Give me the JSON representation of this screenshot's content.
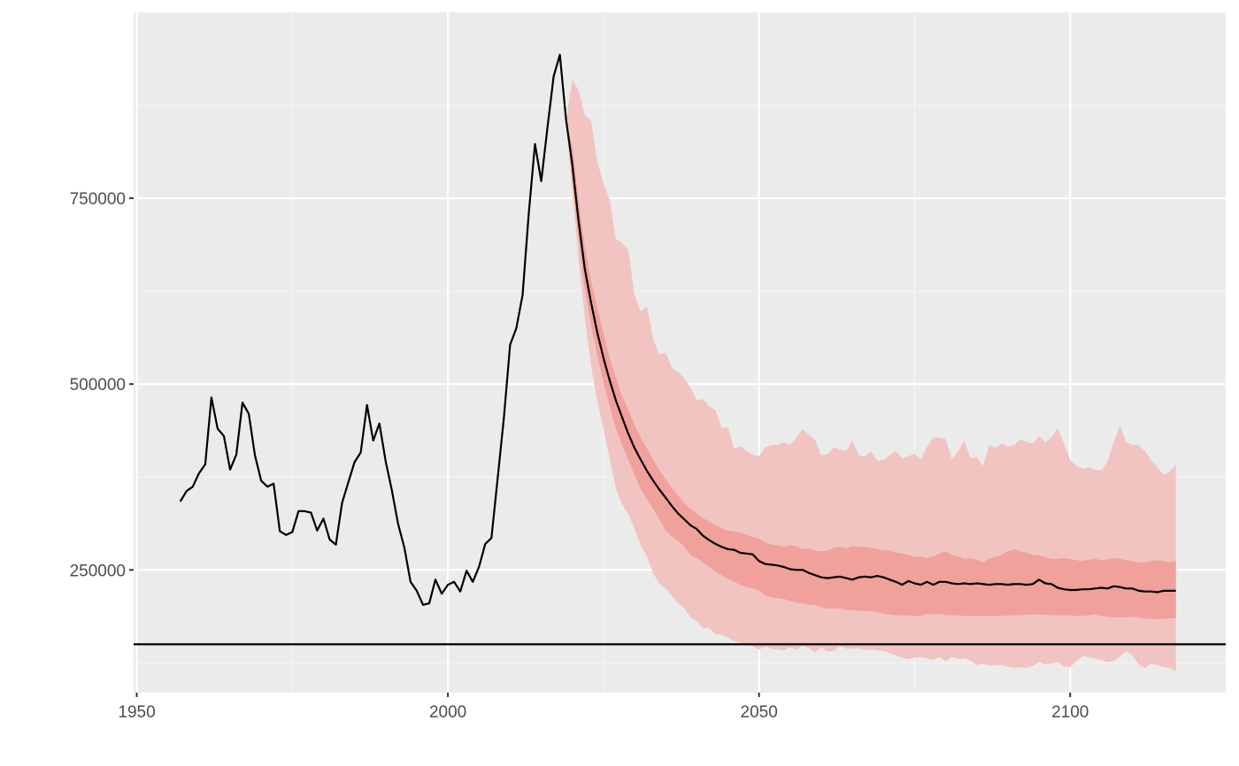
{
  "chart_data": {
    "type": "line",
    "title": "",
    "xlabel": "",
    "ylabel": "",
    "xlim": [
      1949.5,
      2125
    ],
    "ylim": [
      85000,
      1000000
    ],
    "x_ticks": [
      1950,
      2000,
      2050,
      2100
    ],
    "x_tick_labels": [
      "1950",
      "2000",
      "2050",
      "2100"
    ],
    "y_ticks": [
      250000,
      500000,
      750000
    ],
    "y_tick_labels": [
      "250000",
      "500000",
      "750000"
    ],
    "grid": true,
    "legend": "none",
    "reference_line": {
      "y": 150000
    },
    "colors": {
      "panel": "#ebebeb",
      "grid_major": "#ffffff",
      "grid_minor": "#f5f5f5",
      "line": "#000000",
      "band_outer": "#f1c4c2",
      "band_inner": "#f0a19c",
      "tick_text": "#4d4d4d"
    },
    "series": [
      {
        "kind": "historical",
        "x": [
          1957,
          1958,
          1959,
          1960,
          1961,
          1962,
          1963,
          1964,
          1965,
          1966,
          1967,
          1968,
          1969,
          1970,
          1971,
          1972,
          1973,
          1974,
          1975,
          1976,
          1977,
          1978,
          1979,
          1980,
          1981,
          1982,
          1983,
          1984,
          1985,
          1986,
          1987,
          1988,
          1989,
          1990,
          1991,
          1992,
          1993,
          1994,
          1995,
          1996,
          1997,
          1998,
          1999,
          2000,
          2001,
          2002,
          2003,
          2004,
          2005,
          2006,
          2007,
          2008,
          2009,
          2010,
          2011,
          2012,
          2013,
          2014,
          2015,
          2016,
          2017,
          2018,
          2019
        ],
        "y": [
          342000,
          356000,
          362000,
          380000,
          392000,
          482000,
          440000,
          430000,
          385000,
          405000,
          475000,
          460000,
          404000,
          370000,
          362000,
          366000,
          302000,
          297000,
          301000,
          329000,
          329000,
          327000,
          303000,
          319000,
          291000,
          284000,
          340000,
          368000,
          395000,
          408000,
          472000,
          424000,
          447000,
          396000,
          357000,
          312000,
          280000,
          234000,
          222000,
          203000,
          205000,
          237000,
          218000,
          230000,
          234000,
          221000,
          249000,
          234000,
          254000,
          285000,
          293000,
          373000,
          455000,
          553000,
          575000,
          620000,
          730000,
          823000,
          773000,
          845000,
          914000,
          943000,
          855000
        ]
      },
      {
        "kind": "projection-median",
        "x": [
          2019,
          2020,
          2021,
          2022,
          2023,
          2024,
          2025,
          2026,
          2027,
          2028,
          2029,
          2030,
          2031,
          2032,
          2033,
          2034,
          2035,
          2036,
          2037,
          2038,
          2039,
          2040,
          2041,
          2042,
          2043,
          2044,
          2045,
          2046,
          2047,
          2048,
          2049,
          2050,
          2051,
          2052,
          2053,
          2054,
          2055,
          2056,
          2057,
          2058,
          2059,
          2060,
          2061,
          2062,
          2063,
          2064,
          2065,
          2066,
          2067,
          2068,
          2069,
          2070,
          2071,
          2072,
          2073,
          2074,
          2075,
          2076,
          2077,
          2078,
          2079,
          2080,
          2081,
          2082,
          2083,
          2084,
          2085,
          2086,
          2087,
          2088,
          2089,
          2090,
          2091,
          2092,
          2093,
          2094,
          2095,
          2096,
          2097,
          2098,
          2099,
          2100,
          2101,
          2102,
          2103,
          2104,
          2105,
          2106,
          2107,
          2108,
          2109,
          2110,
          2111,
          2112,
          2113,
          2114,
          2115,
          2116,
          2117
        ],
        "y": [
          855000,
          795000,
          720000,
          655000,
          610000,
          570000,
          535000,
          505000,
          478000,
          455000,
          433000,
          414000,
          398000,
          383000,
          370000,
          358000,
          347000,
          336000,
          326000,
          318000,
          310000,
          305000,
          296000,
          290000,
          285000,
          281000,
          278000,
          277000,
          273000,
          272000,
          271000,
          262000,
          258000,
          257000,
          256000,
          254000,
          251000,
          250000,
          250000,
          246000,
          243000,
          240000,
          239000,
          240000,
          241000,
          239000,
          237000,
          240000,
          241000,
          240000,
          242000,
          240000,
          237000,
          234000,
          230000,
          235000,
          232000,
          230000,
          234000,
          230000,
          234000,
          234000,
          232000,
          231000,
          232000,
          231000,
          232000,
          231000,
          230000,
          231000,
          231000,
          230000,
          231000,
          231000,
          230000,
          231000,
          237000,
          232000,
          231000,
          226000,
          224000,
          223000,
          223000,
          224000,
          224000,
          225000,
          226000,
          225000,
          228000,
          227000,
          225000,
          225000,
          222000,
          221000,
          221000,
          220000,
          222000,
          222000,
          222000
        ]
      }
    ],
    "bands": [
      {
        "kind": "outer",
        "x": [
          2019,
          2020,
          2021,
          2022,
          2023,
          2024,
          2025,
          2026,
          2027,
          2028,
          2029,
          2030,
          2031,
          2032,
          2033,
          2034,
          2035,
          2036,
          2037,
          2038,
          2039,
          2040,
          2041,
          2042,
          2043,
          2044,
          2045,
          2046,
          2047,
          2048,
          2049,
          2050,
          2051,
          2052,
          2053,
          2054,
          2055,
          2056,
          2057,
          2058,
          2059,
          2060,
          2061,
          2062,
          2063,
          2064,
          2065,
          2066,
          2067,
          2068,
          2069,
          2070,
          2071,
          2072,
          2073,
          2074,
          2075,
          2076,
          2077,
          2078,
          2079,
          2080,
          2081,
          2082,
          2083,
          2084,
          2085,
          2086,
          2087,
          2088,
          2089,
          2090,
          2091,
          2092,
          2093,
          2094,
          2095,
          2096,
          2097,
          2098,
          2099,
          2100,
          2101,
          2102,
          2103,
          2104,
          2105,
          2106,
          2107,
          2108,
          2109,
          2110,
          2111,
          2112,
          2113,
          2114,
          2115,
          2116,
          2117
        ],
        "upper": [
          855000,
          910000,
          895000,
          862000,
          855000,
          800000,
          770000,
          748000,
          695000,
          690000,
          680000,
          620000,
          598000,
          605000,
          560000,
          540000,
          542000,
          522000,
          516000,
          508000,
          495000,
          478000,
          480000,
          470000,
          465000,
          441000,
          442000,
          413000,
          416000,
          410000,
          405000,
          403000,
          415000,
          418000,
          418000,
          422000,
          418000,
          428000,
          440000,
          432000,
          425000,
          404000,
          406000,
          415000,
          412000,
          410000,
          424000,
          405000,
          402000,
          410000,
          397000,
          398000,
          404000,
          410000,
          400000,
          403000,
          406000,
          399000,
          416000,
          428000,
          428000,
          426000,
          399000,
          410000,
          424000,
          400000,
          402000,
          390000,
          418000,
          414000,
          420000,
          416000,
          418000,
          426000,
          422000,
          420000,
          430000,
          422000,
          428000,
          440000,
          420000,
          398000,
          390000,
          386000,
          388000,
          385000,
          384000,
          396000,
          422000,
          445000,
          422000,
          418000,
          418000,
          410000,
          398000,
          388000,
          378000,
          382000,
          392000
        ],
        "lower": [
          855000,
          760000,
          670000,
          590000,
          525000,
          478000,
          440000,
          400000,
          360000,
          338000,
          325000,
          305000,
          283000,
          268000,
          245000,
          232000,
          225000,
          215000,
          205000,
          198000,
          186000,
          181000,
          171000,
          172000,
          163000,
          163000,
          159000,
          154000,
          152000,
          150000,
          147000,
          143000,
          147000,
          144000,
          143000,
          142000,
          146000,
          143000,
          148000,
          145000,
          139000,
          146000,
          140000,
          141000,
          147000,
          144000,
          144000,
          145000,
          142000,
          143000,
          142000,
          141000,
          138000,
          135000,
          132000,
          130000,
          132000,
          133000,
          131000,
          129000,
          133000,
          127000,
          133000,
          130000,
          131000,
          128000,
          122000,
          124000,
          121000,
          122000,
          122000,
          120000,
          118000,
          119000,
          118000,
          121000,
          126000,
          123000,
          124000,
          126000,
          120000,
          119000,
          127000,
          134000,
          133000,
          131000,
          129000,
          126000,
          128000,
          133000,
          141000,
          135000,
          123000,
          118000,
          124000,
          122000,
          119000,
          118000,
          114000
        ]
      },
      {
        "kind": "inner",
        "x": [
          2019,
          2020,
          2021,
          2022,
          2023,
          2024,
          2025,
          2026,
          2027,
          2028,
          2029,
          2030,
          2031,
          2032,
          2033,
          2034,
          2035,
          2036,
          2037,
          2038,
          2039,
          2040,
          2041,
          2042,
          2043,
          2044,
          2045,
          2046,
          2047,
          2048,
          2049,
          2050,
          2051,
          2052,
          2053,
          2054,
          2055,
          2056,
          2057,
          2058,
          2059,
          2060,
          2061,
          2062,
          2063,
          2064,
          2065,
          2066,
          2067,
          2068,
          2069,
          2070,
          2071,
          2072,
          2073,
          2074,
          2075,
          2076,
          2077,
          2078,
          2079,
          2080,
          2081,
          2082,
          2083,
          2084,
          2085,
          2086,
          2087,
          2088,
          2089,
          2090,
          2091,
          2092,
          2093,
          2094,
          2095,
          2096,
          2097,
          2098,
          2099,
          2100,
          2101,
          2102,
          2103,
          2104,
          2105,
          2106,
          2107,
          2108,
          2109,
          2110,
          2111,
          2112,
          2113,
          2114,
          2115,
          2116,
          2117
        ],
        "upper": [
          855000,
          820000,
          748000,
          685000,
          640000,
          603000,
          568000,
          535000,
          508000,
          484000,
          465000,
          445000,
          428000,
          413000,
          398000,
          384000,
          372000,
          360000,
          350000,
          340000,
          332000,
          326000,
          320000,
          315000,
          310000,
          306000,
          303000,
          302000,
          300000,
          297000,
          294000,
          292000,
          287000,
          284000,
          283000,
          281000,
          283000,
          282000,
          278000,
          279000,
          276000,
          275000,
          276000,
          280000,
          281000,
          279000,
          282000,
          281000,
          281000,
          280000,
          278000,
          276000,
          276000,
          273000,
          272000,
          270000,
          268000,
          268000,
          266000,
          268000,
          272000,
          275000,
          270000,
          268000,
          265000,
          266000,
          264000,
          260000,
          265000,
          268000,
          270000,
          275000,
          278000,
          275000,
          273000,
          270000,
          270000,
          267000,
          265000,
          265000,
          266000,
          265000,
          263000,
          262000,
          264000,
          265000,
          263000,
          264000,
          266000,
          265000,
          263000,
          262000,
          260000,
          260000,
          262000,
          263000,
          262000,
          260000,
          262000
        ],
        "lower": [
          855000,
          772000,
          695000,
          628000,
          580000,
          540000,
          502000,
          470000,
          440000,
          418000,
          398000,
          378000,
          358000,
          345000,
          332000,
          318000,
          303000,
          295000,
          289000,
          281000,
          270000,
          266000,
          260000,
          254000,
          247000,
          243000,
          238000,
          234000,
          230000,
          227000,
          225000,
          222000,
          216000,
          213000,
          212000,
          211000,
          208000,
          206000,
          205000,
          203000,
          203000,
          200000,
          198000,
          198000,
          198000,
          196000,
          196000,
          195000,
          195000,
          194000,
          193000,
          191000,
          190000,
          189000,
          189000,
          189000,
          188000,
          188000,
          191000,
          190000,
          191000,
          189000,
          189000,
          189000,
          188000,
          188000,
          188000,
          188000,
          188000,
          188000,
          188000,
          189000,
          189000,
          189000,
          190000,
          190000,
          190000,
          190000,
          189000,
          189000,
          189000,
          189000,
          188000,
          188000,
          189000,
          190000,
          188000,
          187000,
          186000,
          186000,
          186000,
          187000,
          186000,
          185000,
          184000,
          184000,
          184000,
          185000,
          185000
        ]
      }
    ]
  }
}
